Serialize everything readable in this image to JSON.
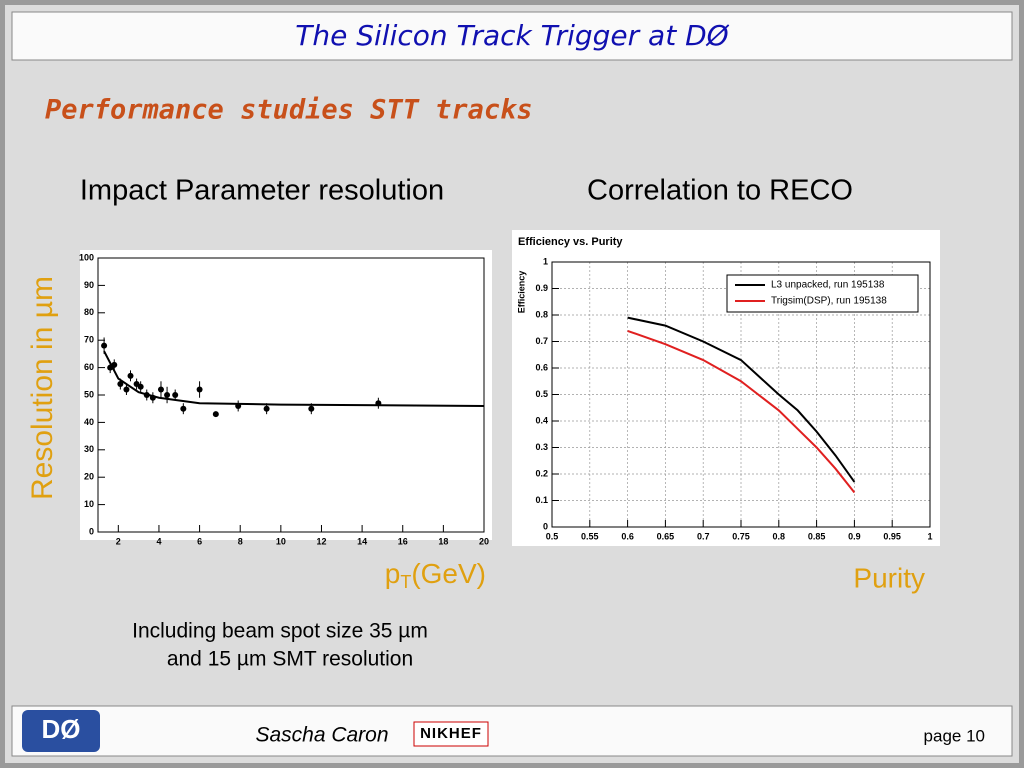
{
  "header": {
    "title": "The Silicon Track Trigger at DØ"
  },
  "heading": "Performance studies STT tracks",
  "left": {
    "title": "Impact Parameter resolution",
    "y_label": "Resolution in µm",
    "x_label": [
      "p",
      "T",
      "(GeV)"
    ],
    "note": [
      "Including beam spot size 35 µm",
      "and 15 µm SMT resolution"
    ]
  },
  "right": {
    "title": "Correlation to RECO",
    "x_label": "Purity"
  },
  "chart_data": [
    {
      "type": "scatter",
      "color": "#000000",
      "x": [
        1.3,
        1.6,
        1.8,
        2.1,
        2.4,
        2.6,
        2.9,
        3.1,
        3.4,
        3.7,
        4.1,
        4.4,
        4.8,
        5.2,
        6.0,
        6.8,
        7.9,
        9.3,
        11.5,
        14.8
      ],
      "values": [
        68,
        60,
        61,
        54,
        52,
        57,
        54,
        53,
        50,
        49,
        52,
        50,
        50,
        45,
        52,
        43,
        46,
        45,
        45,
        47
      ],
      "errors": [
        3,
        2,
        2,
        2,
        2,
        2,
        2,
        2,
        2,
        2,
        3,
        3,
        2,
        2,
        3,
        1,
        2,
        2,
        2,
        2
      ],
      "fit": {
        "x": [
          1.3,
          2,
          3,
          4,
          6,
          10,
          20
        ],
        "values": [
          66,
          56,
          51,
          49,
          47,
          46.5,
          46
        ]
      },
      "xlim": [
        1,
        20
      ],
      "xticks": [
        2,
        4,
        6,
        8,
        10,
        12,
        14,
        16,
        18,
        20
      ],
      "ylim": [
        0,
        100
      ],
      "yticks": [
        0,
        10,
        20,
        30,
        40,
        50,
        60,
        70,
        80,
        90,
        100
      ],
      "grid": false
    },
    {
      "type": "line",
      "title": "Efficiency vs. Purity",
      "y_label": "Efficiency",
      "x": [
        0.6,
        0.65,
        0.7,
        0.75,
        0.8,
        0.825,
        0.85,
        0.875,
        0.9
      ],
      "series": [
        {
          "name": "L3 unpacked, run 195138",
          "color": "#000000",
          "values": [
            0.79,
            0.76,
            0.7,
            0.63,
            0.5,
            0.44,
            0.36,
            0.27,
            0.17
          ]
        },
        {
          "name": "Trigsim(DSP), run 195138",
          "color": "#e02020",
          "values": [
            0.74,
            0.69,
            0.63,
            0.55,
            0.44,
            0.37,
            0.3,
            0.22,
            0.13
          ]
        }
      ],
      "xlim": [
        0.5,
        1
      ],
      "xticks": [
        0.5,
        0.55,
        0.6,
        0.65,
        0.7,
        0.75,
        0.8,
        0.85,
        0.9,
        0.95,
        1
      ],
      "ylim": [
        0,
        1
      ],
      "yticks": [
        0,
        0.1,
        0.2,
        0.3,
        0.4,
        0.5,
        0.6,
        0.7,
        0.8,
        0.9,
        1
      ],
      "grid": true,
      "legend": "top-right"
    }
  ],
  "footer": {
    "author": "Sascha Caron",
    "logo_left": "DØ",
    "logo_right": "NIKHEF",
    "page": "page 10"
  }
}
